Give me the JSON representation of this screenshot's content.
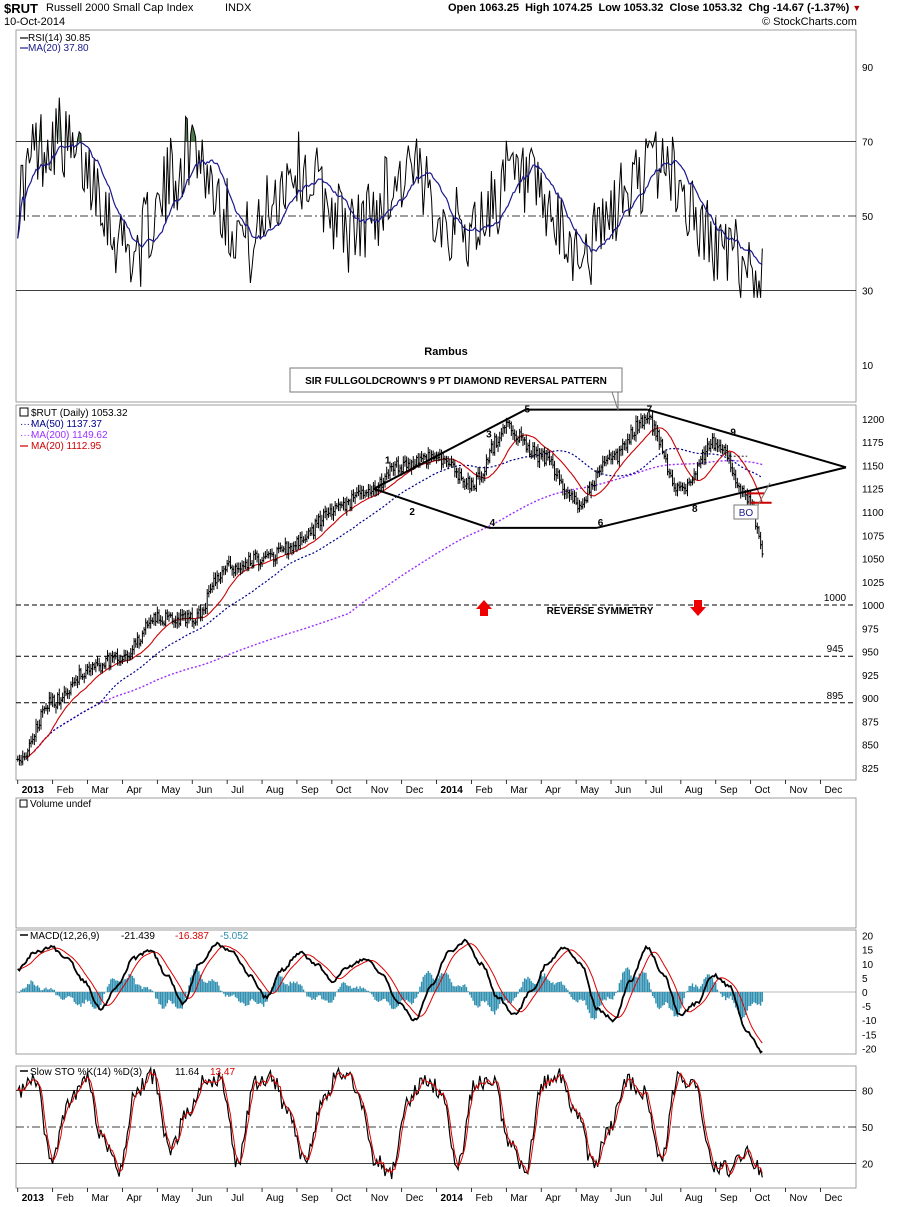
{
  "header": {
    "symbol": "$RUT",
    "name": "Russell 2000 Small Cap Index",
    "exchange": "INDX",
    "date": "10-Oct-2014",
    "open_label": "Open",
    "open": "1063.25",
    "high_label": "High",
    "high": "1074.25",
    "low_label": "Low",
    "low": "1053.32",
    "close_label": "Close",
    "close": "1053.32",
    "chg_label": "Chg",
    "chg": "-14.67 (-1.37%)",
    "watermark": "© StockCharts.com"
  },
  "colors": {
    "price": "#000000",
    "ma50": "#00008b",
    "ma200": "#9b30ff",
    "ma20": "#cc0000",
    "rsi": "#000000",
    "rsi_ma": "#1a1a8c",
    "rsi_fill": "#4f7a4f",
    "macd": "#000000",
    "signal": "#dd0000",
    "hist": "#2f8fb0",
    "sto_k": "#000000",
    "sto_d": "#dd0000",
    "arrow": "#ee0000",
    "grid": "#000000"
  },
  "chart_data": [
    {
      "type": "line",
      "panel": "rsi",
      "labels": [
        "RSI(14) 30.85",
        "MA(20) 37.80"
      ],
      "ylim": [
        0,
        100
      ],
      "y_ticks": [
        10,
        30,
        50,
        70,
        90
      ],
      "reference_lines": [
        30,
        50,
        70
      ],
      "values_sample": [
        55,
        68,
        72,
        65,
        60,
        45,
        40,
        50,
        62,
        70,
        58,
        48,
        42,
        55,
        63,
        60,
        52,
        45,
        50,
        58,
        62,
        55,
        48,
        45,
        52,
        60,
        58,
        50,
        42,
        40,
        48,
        56,
        62,
        65,
        55,
        45,
        40,
        38,
        30.85
      ]
    },
    {
      "type": "ohlc",
      "panel": "price",
      "labels": [
        "$RUT (Daily) 1053.32",
        "MA(50) 1137.37",
        "MA(200) 1149.62",
        "MA(20) 1112.95"
      ],
      "ylim": [
        812,
        1215
      ],
      "y_ticks": [
        825,
        850,
        875,
        900,
        925,
        950,
        975,
        1000,
        1025,
        1050,
        1075,
        1100,
        1125,
        1150,
        1175,
        1200
      ],
      "x_ticks": [
        "2013",
        "Feb",
        "Mar",
        "Apr",
        "May",
        "Jun",
        "Jul",
        "Aug",
        "Sep",
        "Oct",
        "Nov",
        "Dec",
        "2014",
        "Feb",
        "Mar",
        "Apr",
        "May",
        "Jun",
        "Jul",
        "Aug",
        "Sep",
        "Oct",
        "Nov",
        "Dec"
      ],
      "close_monthly": [
        [
          0,
          835
        ],
        [
          1,
          895
        ],
        [
          2,
          930
        ],
        [
          3,
          945
        ],
        [
          4,
          985
        ],
        [
          5,
          985
        ],
        [
          6,
          1040
        ],
        [
          7,
          1050
        ],
        [
          8,
          1065
        ],
        [
          9,
          1100
        ],
        [
          10,
          1120
        ],
        [
          11,
          1150
        ],
        [
          12,
          1160
        ],
        [
          13,
          1130
        ],
        [
          14,
          1190
        ],
        [
          15,
          1160
        ],
        [
          16,
          1110
        ],
        [
          17,
          1155
        ],
        [
          18,
          1200
        ],
        [
          19,
          1125
        ],
        [
          20,
          1175
        ],
        [
          21,
          1110
        ],
        [
          21.35,
          1053.32
        ]
      ],
      "support_levels": [
        {
          "value": 1000,
          "label": "1000"
        },
        {
          "value": 945,
          "label": "945"
        },
        {
          "value": 895,
          "label": "895"
        }
      ],
      "pattern_title": "SIR FULLGOLDCROWN'S 9 PT DIAMOND REVERSAL PATTERN",
      "pattern_points": [
        {
          "label": "1",
          "x": 10.6,
          "y": 1152
        },
        {
          "label": "2",
          "x": 11.3,
          "y": 1097
        },
        {
          "label": "3",
          "x": 13.5,
          "y": 1180
        },
        {
          "label": "4",
          "x": 13.6,
          "y": 1085
        },
        {
          "label": "5",
          "x": 14.6,
          "y": 1207
        },
        {
          "label": "6",
          "x": 16.7,
          "y": 1085
        },
        {
          "label": "7",
          "x": 18.1,
          "y": 1207
        },
        {
          "label": "8",
          "x": 19.4,
          "y": 1100
        },
        {
          "label": "9",
          "x": 20.5,
          "y": 1182
        }
      ],
      "annotations": [
        "Rambus",
        "REVERSE SYMMETRY",
        "BO"
      ]
    },
    {
      "type": "bar",
      "panel": "volume",
      "labels": [
        "Volume undef"
      ]
    },
    {
      "type": "line",
      "panel": "macd",
      "labels": [
        "MACD(12,26,9)",
        "-21.439",
        "-16.387",
        "-5.052"
      ],
      "ylim": [
        -22,
        22
      ],
      "y_ticks": [
        -20,
        -15,
        -10,
        -5,
        0,
        5,
        10,
        15,
        20
      ],
      "values_sample": [
        8,
        14,
        16,
        12,
        4,
        -6,
        2,
        12,
        15,
        6,
        -4,
        10,
        17,
        14,
        6,
        -2,
        8,
        14,
        10,
        4,
        9,
        12,
        6,
        -4,
        -10,
        2,
        14,
        18,
        10,
        -2,
        -8,
        0,
        10,
        16,
        10,
        -6,
        -10,
        4,
        16,
        6,
        -8,
        -4,
        6,
        2,
        -14,
        -21.439
      ]
    },
    {
      "type": "line",
      "panel": "sto",
      "labels": [
        "Slow STO %K(14) %D(3)",
        "11.64",
        "13.47"
      ],
      "ylim": [
        0,
        100
      ],
      "y_ticks": [
        20,
        50,
        80
      ],
      "reference_lines": [
        20,
        50,
        80
      ],
      "x_ticks": [
        "2013",
        "Feb",
        "Mar",
        "Apr",
        "May",
        "Jun",
        "Jul",
        "Aug",
        "Sep",
        "Oct",
        "Nov",
        "Dec",
        "2014",
        "Feb",
        "Mar",
        "Apr",
        "May",
        "Jun",
        "Jul",
        "Aug",
        "Sep",
        "Oct",
        "Nov",
        "Dec"
      ],
      "values_sample": [
        80,
        90,
        20,
        70,
        90,
        40,
        15,
        80,
        92,
        30,
        60,
        90,
        88,
        20,
        85,
        90,
        60,
        20,
        70,
        95,
        85,
        25,
        10,
        70,
        90,
        80,
        20,
        85,
        90,
        40,
        15,
        85,
        92,
        60,
        18,
        50,
        88,
        80,
        20,
        92,
        85,
        20,
        15,
        30,
        11.64
      ]
    }
  ]
}
